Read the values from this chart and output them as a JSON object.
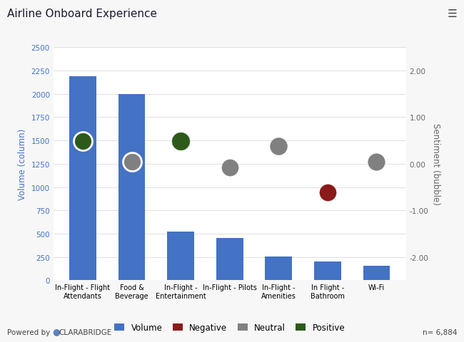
{
  "title": "Airline Onboard Experience",
  "categories": [
    "In-Flight - Flight\nAttendants",
    "Food &\nBeverage",
    "In-Flight -\nEntertainment",
    "In-Flight - Pilots",
    "In-Flight -\nAmenities",
    "In Flight -\nBathroom",
    "Wi-Fi"
  ],
  "bar_values": [
    2190,
    2000,
    520,
    455,
    255,
    200,
    155
  ],
  "bubble_sentiments": [
    0.48,
    0.05,
    0.48,
    -0.08,
    0.38,
    -0.62,
    0.05
  ],
  "bubble_colors": [
    "#2d5a1b",
    "#808080",
    "#2d5a1b",
    "#808080",
    "#808080",
    "#8b1a1a",
    "#808080"
  ],
  "bubble_sizes": [
    350,
    350,
    320,
    280,
    300,
    280,
    290
  ],
  "bar_color": "#4472c4",
  "ylabel_left": "Volume (column)",
  "ylabel_right": "Sentiment (bubble)",
  "ylim_left": [
    0,
    2500
  ],
  "ylim_right": [
    -2.5,
    2.5
  ],
  "yticks_left": [
    0,
    250,
    500,
    750,
    1000,
    1250,
    1500,
    1750,
    2000,
    2250,
    2500
  ],
  "yticks_right": [
    -2.0,
    -1.0,
    0.0,
    1.0,
    2.0
  ],
  "background_color": "#f7f7f7",
  "plot_bg_color": "#ffffff",
  "title_fontsize": 11,
  "axis_label_color": "#4472c4",
  "right_label_color": "#666666",
  "n_text": "n= 6,884",
  "legend_labels": [
    "Volume",
    "Negative",
    "Neutral",
    "Positive"
  ],
  "legend_colors": [
    "#4472c4",
    "#8b1a1a",
    "#808080",
    "#2d5a1b"
  ],
  "grid_color": "#e0e0e0",
  "bubble_edge_colors": [
    "#ffffff",
    "#ffffff",
    "none",
    "none",
    "none",
    "none",
    "none"
  ],
  "bubble_edge_widths": [
    2.0,
    2.0,
    0,
    0,
    0,
    0,
    0
  ]
}
